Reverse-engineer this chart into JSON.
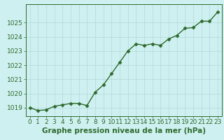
{
  "x": [
    0,
    1,
    2,
    3,
    4,
    5,
    6,
    7,
    8,
    9,
    10,
    11,
    12,
    13,
    14,
    15,
    16,
    17,
    18,
    19,
    20,
    21,
    22,
    23
  ],
  "y": [
    1019.0,
    1018.8,
    1018.85,
    1019.1,
    1019.2,
    1019.3,
    1019.3,
    1019.15,
    1020.1,
    1020.6,
    1021.4,
    1022.2,
    1023.0,
    1023.5,
    1023.4,
    1023.5,
    1023.4,
    1023.85,
    1024.1,
    1024.6,
    1024.65,
    1025.1,
    1025.1,
    1025.75
  ],
  "line_color": "#2d6a2d",
  "marker": "D",
  "markersize": 2.5,
  "linewidth": 1.0,
  "bg_color": "#cff0f0",
  "grid_color": "#b0d8d8",
  "xlabel": "Graphe pression niveau de la mer (hPa)",
  "xlabel_fontsize": 7.5,
  "tick_label_color": "#2d6a2d",
  "tick_fontsize": 6.5,
  "ylim": [
    1018.4,
    1026.3
  ],
  "yticks": [
    1019,
    1020,
    1021,
    1022,
    1023,
    1024,
    1025
  ],
  "xlim": [
    -0.5,
    23.5
  ],
  "xticks": [
    0,
    1,
    2,
    3,
    4,
    5,
    6,
    7,
    8,
    9,
    10,
    11,
    12,
    13,
    14,
    15,
    16,
    17,
    18,
    19,
    20,
    21,
    22,
    23
  ]
}
